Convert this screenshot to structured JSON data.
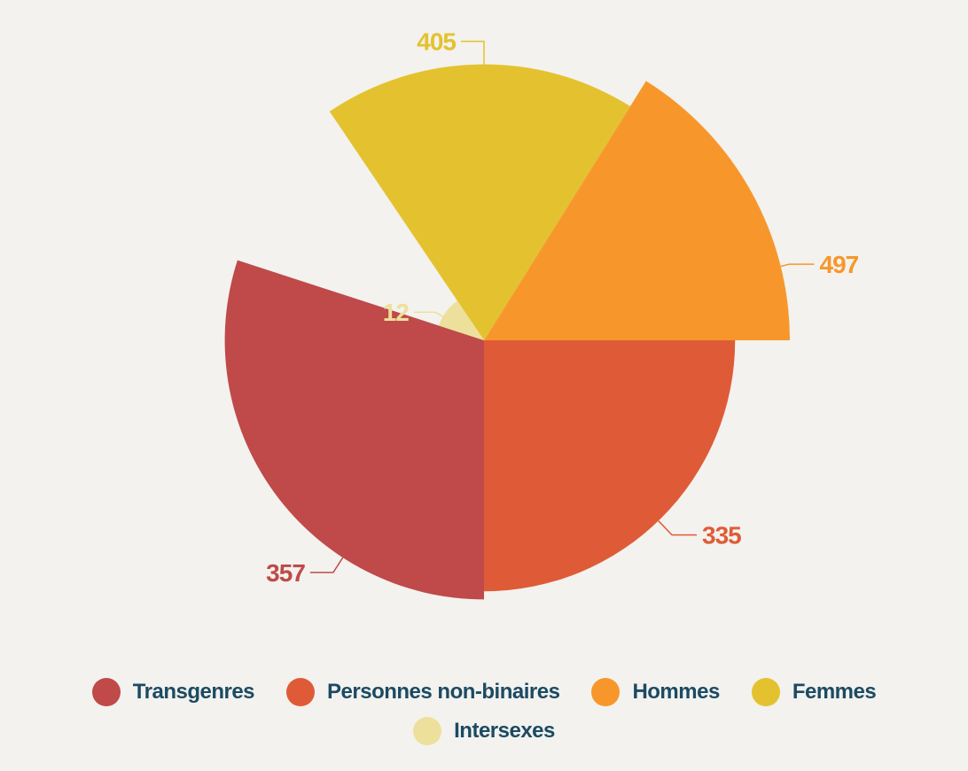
{
  "chart_data": {
    "type": "polar-area",
    "categories": [
      "Transgenres",
      "Personnes non-binaires",
      "Hommes",
      "Femmes",
      "Intersexes"
    ],
    "values": [
      357,
      335,
      497,
      405,
      12
    ],
    "colors": [
      "#bf4a49",
      "#df5b37",
      "#f7972b",
      "#e4c22f",
      "#ede09c"
    ],
    "legend_position": "bottom",
    "title": "",
    "xlabel": "",
    "ylabel": ""
  }
}
